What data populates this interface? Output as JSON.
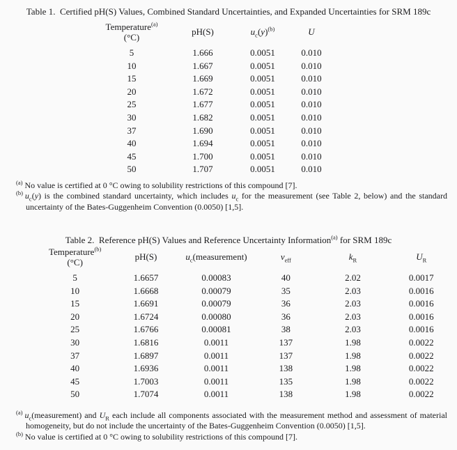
{
  "page": {
    "background": "#fafafa",
    "text_color": "#1a1a1c"
  },
  "table1": {
    "title": "Table 1.  Certified pH(S) Values, Combined Standard Uncertainties, and Expanded Uncertainties for SRM 189c",
    "headers": {
      "temp": {
        "main": "Temperature",
        "sup": "(a)",
        "unit": "(°C)"
      },
      "ph": "pH(S)",
      "uc": {
        "base": "u",
        "sub": "c",
        "open": "(",
        "arg": "y",
        "close": ")",
        "sup": "(b)"
      },
      "u_label": "U"
    },
    "rows": [
      [
        "5",
        "1.666",
        "0.0051",
        "0.010"
      ],
      [
        "10",
        "1.667",
        "0.0051",
        "0.010"
      ],
      [
        "15",
        "1.669",
        "0.0051",
        "0.010"
      ],
      [
        "20",
        "1.672",
        "0.0051",
        "0.010"
      ],
      [
        "25",
        "1.677",
        "0.0051",
        "0.010"
      ],
      [
        "30",
        "1.682",
        "0.0051",
        "0.010"
      ],
      [
        "37",
        "1.690",
        "0.0051",
        "0.010"
      ],
      [
        "40",
        "1.694",
        "0.0051",
        "0.010"
      ],
      [
        "45",
        "1.700",
        "0.0051",
        "0.010"
      ],
      [
        "50",
        "1.707",
        "0.0051",
        "0.010"
      ]
    ],
    "footnotes": [
      {
        "marker": "(a)",
        "segments": [
          {
            "t": "No value is certified at 0 °C owing to solubility restrictions of this compound [7].",
            "s": ""
          }
        ]
      },
      {
        "marker": "(b)",
        "segments": [
          {
            "t": "u",
            "s": "i"
          },
          {
            "t": "c",
            "s": "sub"
          },
          {
            "t": "(",
            "s": ""
          },
          {
            "t": "y",
            "s": "i"
          },
          {
            "t": ") is the combined standard uncertainty, which includes ",
            "s": ""
          },
          {
            "t": "u",
            "s": "i"
          },
          {
            "t": "c",
            "s": "sub"
          },
          {
            "t": " for the measurement (see Table 2, below) and the standard uncertainty of the Bates-Guggenheim Convention (0.0050) [1,5].",
            "s": ""
          }
        ]
      }
    ]
  },
  "table2": {
    "title": "Table 2.  Reference pH(S) Values and Reference Uncertainty Information",
    "title_sup": "(a)",
    "title_suffix": " for SRM 189c",
    "headers": {
      "temp": {
        "main": "Temperature",
        "sup": "(b)",
        "unit": "(°C)"
      },
      "ph": "pH(S)",
      "uc": {
        "base": "u",
        "sub": "c",
        "arg": "(measurement)"
      },
      "veff": {
        "base": "v",
        "sub": "eff"
      },
      "kr": {
        "base": "k",
        "sub": "R"
      },
      "ur": {
        "base": "U",
        "sub": "R"
      }
    },
    "rows": [
      [
        "5",
        "1.6657",
        "0.00083",
        "40",
        "2.02",
        "0.0017"
      ],
      [
        "10",
        "1.6668",
        "0.00079",
        "35",
        "2.03",
        "0.0016"
      ],
      [
        "15",
        "1.6691",
        "0.00079",
        "36",
        "2.03",
        "0.0016"
      ],
      [
        "20",
        "1.6724",
        "0.00080",
        "36",
        "2.03",
        "0.0016"
      ],
      [
        "25",
        "1.6766",
        "0.00081",
        "38",
        "2.03",
        "0.0016"
      ],
      [
        "30",
        "1.6816",
        "0.0011",
        "137",
        "1.98",
        "0.0022"
      ],
      [
        "37",
        "1.6897",
        "0.0011",
        "137",
        "1.98",
        "0.0022"
      ],
      [
        "40",
        "1.6936",
        "0.0011",
        "138",
        "1.98",
        "0.0022"
      ],
      [
        "45",
        "1.7003",
        "0.0011",
        "135",
        "1.98",
        "0.0022"
      ],
      [
        "50",
        "1.7074",
        "0.0011",
        "138",
        "1.98",
        "0.0022"
      ]
    ],
    "footnotes": [
      {
        "marker": "(a)",
        "segments": [
          {
            "t": "u",
            "s": "i"
          },
          {
            "t": "c",
            "s": "sub"
          },
          {
            "t": "(measurement) and ",
            "s": ""
          },
          {
            "t": "U",
            "s": "i"
          },
          {
            "t": "R",
            "s": "sub"
          },
          {
            "t": " each include all components associated with the measurement method and assessment of material homogeneity, but do not include the uncertainty of the Bates-Guggenheim Convention (0.0050) [1,5].",
            "s": ""
          }
        ]
      },
      {
        "marker": "(b)",
        "segments": [
          {
            "t": "No value is certified at 0 °C owing to solubility restrictions of this compound [7].",
            "s": ""
          }
        ]
      }
    ]
  }
}
